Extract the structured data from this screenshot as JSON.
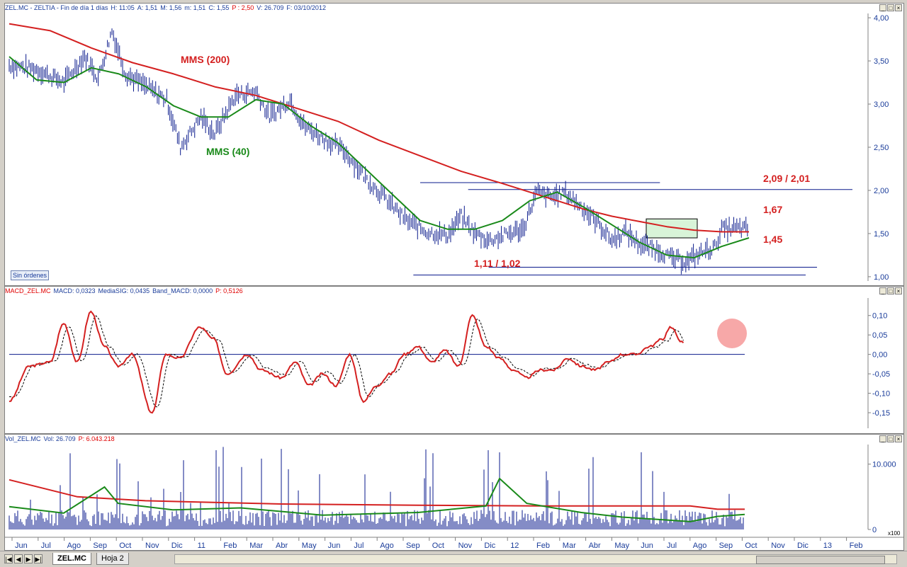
{
  "window": {
    "title_parts": [
      {
        "text": "ZEL.MC - ZELTIA - Fin de día 1 días",
        "color": "blue"
      },
      {
        "text": "H: 11:05",
        "color": "blue"
      },
      {
        "text": "A: 1,51",
        "color": "blue"
      },
      {
        "text": "M: 1,56",
        "color": "blue"
      },
      {
        "text": "m: 1,51",
        "color": "blue"
      },
      {
        "text": "C: 1,55",
        "color": "blue"
      },
      {
        "text": "P : 2,50",
        "color": "red"
      },
      {
        "text": "V: 26.709",
        "color": "blue"
      },
      {
        "text": "F: 03/10/2012",
        "color": "blue"
      }
    ],
    "buttons": [
      "_",
      "□",
      "×"
    ]
  },
  "macd_pane": {
    "title_parts": [
      {
        "text": "MACD_ZEL.MC",
        "color": "red"
      },
      {
        "text": "MACD: 0,0323",
        "color": "blue"
      },
      {
        "text": "MediaSIG: 0,0435",
        "color": "blue"
      },
      {
        "text": "Band_MACD: 0,0000",
        "color": "blue"
      },
      {
        "text": "P: 0,5126",
        "color": "red"
      }
    ]
  },
  "vol_pane": {
    "title_parts": [
      {
        "text": "Vol_ZEL.MC",
        "color": "blue"
      },
      {
        "text": "Vol: 26.709",
        "color": "blue"
      },
      {
        "text": "P: 6.043.218",
        "color": "red"
      }
    ],
    "scale_note": "x100"
  },
  "sin_ordenes": "Sin órdenes",
  "tabs": {
    "active": "ZEL.MC",
    "other": "Hoja 2"
  },
  "nav_buttons": [
    "|◀",
    "◀",
    "▶",
    "▶|"
  ],
  "colors": {
    "price": "#0a1a8c",
    "sma200": "#d42020",
    "sma40": "#1a8a1a",
    "macd": "#d42020",
    "signal": "#000000",
    "annotation": "#d42020",
    "green_label": "#1a8a1a",
    "axis_text": "#1a3c9a"
  },
  "chart_data": [
    {
      "type": "line",
      "name": "price",
      "x_axis_labels": [
        "Jun",
        "Jul",
        "Ago",
        "Sep",
        "Oct",
        "Nov",
        "Dic",
        "11",
        "Feb",
        "Mar",
        "Abr",
        "May",
        "Jun",
        "Jul",
        "Ago",
        "Sep",
        "Oct",
        "Nov",
        "Dic",
        "12",
        "Feb",
        "Mar",
        "Abr",
        "May",
        "Jun",
        "Jul",
        "Ago",
        "Sep",
        "Oct",
        "Nov",
        "Dic",
        "13",
        "Feb"
      ],
      "y_ticks": [
        "1,00",
        "1,50",
        "2,00",
        "2,50",
        "3,00",
        "3,50",
        "4,00"
      ],
      "ylim": [
        0.95,
        4.05
      ],
      "price_path": [
        [
          0,
          3.45
        ],
        [
          4,
          3.4
        ],
        [
          8,
          3.25
        ],
        [
          11,
          3.55
        ],
        [
          13,
          3.3
        ],
        [
          15,
          3.85
        ],
        [
          17,
          3.35
        ],
        [
          20,
          3.2
        ],
        [
          23,
          3.05
        ],
        [
          25,
          2.5
        ],
        [
          28,
          2.85
        ],
        [
          30,
          2.65
        ],
        [
          33,
          3.1
        ],
        [
          36,
          3.15
        ],
        [
          38,
          2.85
        ],
        [
          41,
          3.05
        ],
        [
          43,
          2.75
        ],
        [
          46,
          2.6
        ],
        [
          49,
          2.45
        ],
        [
          52,
          2.15
        ],
        [
          55,
          1.9
        ],
        [
          58,
          1.65
        ],
        [
          61,
          1.52
        ],
        [
          64,
          1.48
        ],
        [
          66,
          1.7
        ],
        [
          68,
          1.5
        ],
        [
          70,
          1.42
        ],
        [
          73,
          1.5
        ],
        [
          75,
          1.55
        ],
        [
          77,
          1.98
        ],
        [
          79,
          1.92
        ],
        [
          81,
          1.98
        ],
        [
          83,
          1.85
        ],
        [
          86,
          1.62
        ],
        [
          88,
          1.42
        ],
        [
          90,
          1.52
        ],
        [
          92,
          1.38
        ],
        [
          95,
          1.3
        ],
        [
          97,
          1.2
        ],
        [
          99,
          1.18
        ],
        [
          101,
          1.28
        ],
        [
          103,
          1.34
        ],
        [
          104,
          1.55
        ],
        [
          106,
          1.56
        ],
        [
          108,
          1.55
        ]
      ],
      "sma200": [
        [
          0,
          3.93
        ],
        [
          6,
          3.85
        ],
        [
          12,
          3.65
        ],
        [
          18,
          3.48
        ],
        [
          24,
          3.35
        ],
        [
          30,
          3.2
        ],
        [
          36,
          3.1
        ],
        [
          42,
          2.95
        ],
        [
          48,
          2.8
        ],
        [
          54,
          2.58
        ],
        [
          60,
          2.4
        ],
        [
          66,
          2.22
        ],
        [
          72,
          2.08
        ],
        [
          76,
          1.98
        ],
        [
          80,
          1.88
        ],
        [
          84,
          1.78
        ],
        [
          88,
          1.7
        ],
        [
          92,
          1.64
        ],
        [
          96,
          1.58
        ],
        [
          100,
          1.54
        ],
        [
          104,
          1.52
        ],
        [
          108,
          1.52
        ]
      ],
      "sma40": [
        [
          0,
          3.55
        ],
        [
          4,
          3.28
        ],
        [
          8,
          3.25
        ],
        [
          12,
          3.42
        ],
        [
          16,
          3.35
        ],
        [
          20,
          3.2
        ],
        [
          24,
          2.98
        ],
        [
          28,
          2.85
        ],
        [
          32,
          2.85
        ],
        [
          36,
          3.05
        ],
        [
          40,
          3.0
        ],
        [
          44,
          2.75
        ],
        [
          48,
          2.55
        ],
        [
          52,
          2.25
        ],
        [
          56,
          1.95
        ],
        [
          60,
          1.65
        ],
        [
          64,
          1.55
        ],
        [
          68,
          1.55
        ],
        [
          72,
          1.65
        ],
        [
          76,
          1.88
        ],
        [
          80,
          1.98
        ],
        [
          84,
          1.8
        ],
        [
          88,
          1.6
        ],
        [
          92,
          1.4
        ],
        [
          96,
          1.25
        ],
        [
          100,
          1.22
        ],
        [
          104,
          1.35
        ],
        [
          108,
          1.45
        ]
      ],
      "labels": {
        "sma200": "MMS (200)",
        "sma40": "MMS (40)"
      },
      "annotations": {
        "resistance": "2,09 / 2,01",
        "upper": "1,67",
        "lower": "1,45",
        "support": "1,11 / 1,02"
      }
    },
    {
      "type": "line",
      "name": "macd",
      "y_ticks": [
        "0,10",
        "0,05",
        "0,00",
        "-0,05",
        "-0,10",
        "-0,15"
      ],
      "ylim": [
        -0.19,
        0.145
      ],
      "macd": [
        [
          0,
          -0.12
        ],
        [
          3,
          -0.03
        ],
        [
          6,
          -0.02
        ],
        [
          8,
          0.08
        ],
        [
          10,
          -0.02
        ],
        [
          12,
          0.11
        ],
        [
          14,
          0.02
        ],
        [
          16,
          -0.03
        ],
        [
          18,
          0.0
        ],
        [
          21,
          -0.15
        ],
        [
          23,
          0.0
        ],
        [
          25,
          -0.01
        ],
        [
          28,
          0.07
        ],
        [
          30,
          0.04
        ],
        [
          32,
          -0.05
        ],
        [
          35,
          0.0
        ],
        [
          37,
          -0.04
        ],
        [
          40,
          -0.06
        ],
        [
          42,
          -0.02
        ],
        [
          44,
          -0.08
        ],
        [
          46,
          -0.05
        ],
        [
          48,
          -0.08
        ],
        [
          50,
          0.0
        ],
        [
          52,
          -0.12
        ],
        [
          54,
          -0.08
        ],
        [
          56,
          -0.05
        ],
        [
          58,
          0.0
        ],
        [
          60,
          0.02
        ],
        [
          62,
          -0.02
        ],
        [
          64,
          0.01
        ],
        [
          66,
          -0.03
        ],
        [
          68,
          0.1
        ],
        [
          70,
          0.02
        ],
        [
          72,
          -0.01
        ],
        [
          74,
          -0.04
        ],
        [
          76,
          -0.06
        ],
        [
          78,
          -0.04
        ],
        [
          80,
          -0.04
        ],
        [
          82,
          -0.01
        ],
        [
          84,
          -0.03
        ],
        [
          86,
          -0.04
        ],
        [
          88,
          -0.02
        ],
        [
          90,
          0.0
        ],
        [
          92,
          0.0
        ],
        [
          94,
          0.02
        ],
        [
          96,
          0.04
        ],
        [
          97,
          0.07
        ],
        [
          99,
          0.03
        ]
      ],
      "zero_line": 0,
      "highlight": "circle on latest peak"
    },
    {
      "type": "bar",
      "name": "volume",
      "y_ticks": [
        "10.000",
        "0"
      ],
      "ylim": [
        0,
        13000
      ]
    }
  ]
}
